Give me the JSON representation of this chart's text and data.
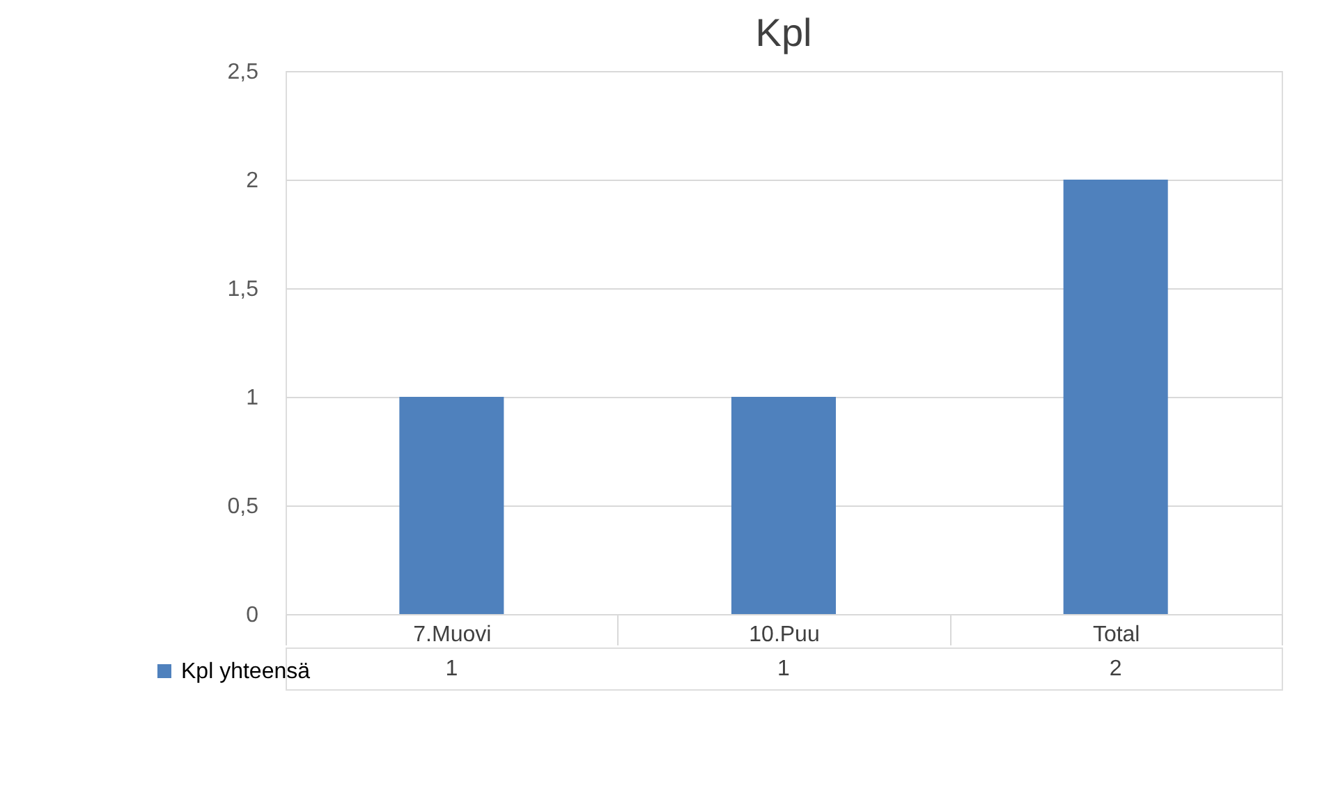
{
  "chart_data": {
    "type": "bar",
    "title": "Kpl",
    "categories": [
      "7.Muovi",
      "10.Puu",
      "Total"
    ],
    "series": [
      {
        "name": "Kpl yhteensä",
        "color": "#4f81bd",
        "values": [
          1,
          1,
          2
        ]
      }
    ],
    "ylim": [
      0,
      2.5
    ],
    "yticks": [
      0,
      {
        "value": 0.5,
        "label": "0,5"
      },
      1,
      {
        "value": 1.5,
        "label": "1,5"
      },
      2,
      {
        "value": 2.5,
        "label": "2,5"
      }
    ],
    "grid": "y",
    "legend": "bottom",
    "data_labels": true
  }
}
